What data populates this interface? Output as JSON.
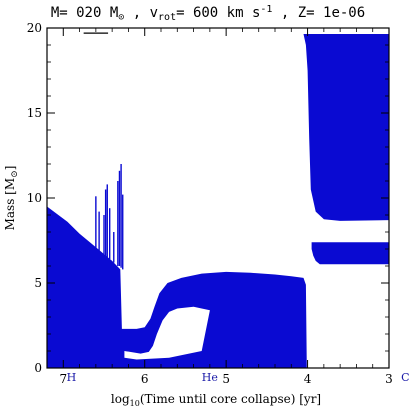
{
  "chart_data": {
    "type": "area",
    "title": {
      "prefix": "M= 020 M",
      "solar_symbol": "⊙",
      "mid": " , v",
      "v_sub": "rot",
      "v_value": "= 600 km s",
      "exponent": "-1",
      "z_part": " , Z= 1e-06"
    },
    "xlabel": {
      "prefix": "log",
      "sub": "10",
      "rest": "(Time until core collapse) [yr]"
    },
    "ylabel": {
      "text": "Mass [M",
      "sub": "⊙",
      "close": "]"
    },
    "xlim": [
      7.2,
      3.0
    ],
    "ylim": [
      0,
      20
    ],
    "x_ticks": [
      7,
      6,
      5,
      4,
      3
    ],
    "y_ticks": [
      0,
      5,
      10,
      15,
      20
    ],
    "grid": false,
    "fill_color": "#0a0ad2",
    "burning_labels": [
      {
        "text": "H",
        "x": 6.9
      },
      {
        "text": "He",
        "x": 5.2
      },
      {
        "text": "C",
        "x": 2.8
      }
    ],
    "convective_regions": [
      {
        "name": "core",
        "points": [
          [
            7.2,
            0
          ],
          [
            7.2,
            9.5
          ],
          [
            6.95,
            8.6
          ],
          [
            6.8,
            7.9
          ],
          [
            6.6,
            7.1
          ],
          [
            6.4,
            6.3
          ],
          [
            6.3,
            5.8
          ],
          [
            6.28,
            2.3
          ],
          [
            6.2,
            2.3
          ],
          [
            6.1,
            2.3
          ],
          [
            6.0,
            2.4
          ],
          [
            5.93,
            2.9
          ],
          [
            5.88,
            3.6
          ],
          [
            5.82,
            4.4
          ],
          [
            5.72,
            5.0
          ],
          [
            5.55,
            5.3
          ],
          [
            5.3,
            5.55
          ],
          [
            5.0,
            5.65
          ],
          [
            4.7,
            5.6
          ],
          [
            4.4,
            5.5
          ],
          [
            4.2,
            5.4
          ],
          [
            4.05,
            5.3
          ],
          [
            4.02,
            4.9
          ],
          [
            4.01,
            0
          ],
          [
            7.2,
            0
          ]
        ]
      },
      {
        "name": "core-gap",
        "points": [
          [
            6.25,
            1.0
          ],
          [
            6.18,
            0.95
          ],
          [
            6.05,
            0.85
          ],
          [
            5.95,
            0.95
          ],
          [
            5.9,
            1.3
          ],
          [
            5.85,
            2.0
          ],
          [
            5.78,
            2.8
          ],
          [
            5.7,
            3.3
          ],
          [
            5.6,
            3.5
          ],
          [
            5.4,
            3.6
          ],
          [
            5.3,
            3.5
          ],
          [
            5.2,
            3.4
          ],
          [
            5.3,
            1.0
          ],
          [
            5.7,
            0.6
          ],
          [
            6.1,
            0.5
          ],
          [
            6.25,
            0.6
          ]
        ]
      },
      {
        "name": "envelope-upper",
        "points": [
          [
            4.05,
            19.65
          ],
          [
            3.0,
            19.65
          ],
          [
            3.0,
            8.7
          ],
          [
            3.6,
            8.65
          ],
          [
            3.8,
            8.75
          ],
          [
            3.9,
            9.2
          ],
          [
            3.96,
            10.5
          ],
          [
            3.97,
            12.0
          ],
          [
            3.98,
            13.5
          ],
          [
            3.99,
            15.5
          ],
          [
            4.0,
            17.5
          ],
          [
            4.02,
            19.0
          ],
          [
            4.05,
            19.65
          ]
        ]
      },
      {
        "name": "envelope-lower",
        "points": [
          [
            3.95,
            7.4
          ],
          [
            3.0,
            7.4
          ],
          [
            3.0,
            6.1
          ],
          [
            3.85,
            6.1
          ],
          [
            3.9,
            6.3
          ],
          [
            3.93,
            6.6
          ],
          [
            3.95,
            7.0
          ]
        ]
      }
    ],
    "spikes": [
      {
        "x": 6.6,
        "top": 10.1,
        "bottom": 6.8
      },
      {
        "x": 6.56,
        "top": 9.2,
        "bottom": 6.9
      },
      {
        "x": 6.5,
        "top": 9.0,
        "bottom": 6.6
      },
      {
        "x": 6.48,
        "top": 10.5,
        "bottom": 6.5
      },
      {
        "x": 6.46,
        "top": 10.8,
        "bottom": 6.5
      },
      {
        "x": 6.43,
        "top": 9.4,
        "bottom": 6.4
      },
      {
        "x": 6.38,
        "top": 8.0,
        "bottom": 6.2
      },
      {
        "x": 6.33,
        "top": 11.0,
        "bottom": 6.0
      },
      {
        "x": 6.31,
        "top": 11.6,
        "bottom": 6.0
      },
      {
        "x": 6.29,
        "top": 12.0,
        "bottom": 5.9
      },
      {
        "x": 6.27,
        "top": 10.2,
        "bottom": 5.8
      }
    ],
    "top_ledge": {
      "x": [
        6.75,
        6.45
      ],
      "y": 19.7
    }
  }
}
